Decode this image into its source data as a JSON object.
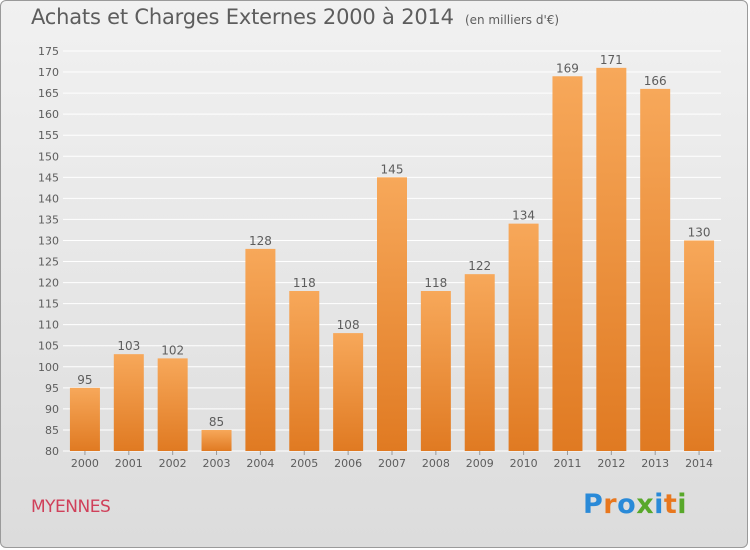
{
  "title": "Achats et Charges Externes 2000 à 2014",
  "unit_note": "(en milliers d'€)",
  "town": "MYENNES",
  "logo": {
    "text": "Proxiti",
    "colors": [
      "#2a8ad8",
      "#e8771e",
      "#2a8ad8",
      "#58a82a",
      "#2a8ad8",
      "#e8771e",
      "#58a82a"
    ]
  },
  "colors": {
    "bar_top": "#f7a85a",
    "bar_bottom": "#e07a22",
    "grid": "#ffffff",
    "text": "#5d5d5d",
    "town": "#d0405a"
  },
  "chart_data": {
    "type": "bar",
    "title": "Achats et Charges Externes 2000 à 2014",
    "subtitle": "(en milliers d'€)",
    "categories": [
      "2000",
      "2001",
      "2002",
      "2003",
      "2004",
      "2005",
      "2006",
      "2007",
      "2008",
      "2009",
      "2010",
      "2011",
      "2012",
      "2013",
      "2014"
    ],
    "values": [
      95,
      103,
      102,
      85,
      128,
      118,
      108,
      145,
      118,
      122,
      134,
      169,
      171,
      166,
      130
    ],
    "ylim": [
      80,
      175
    ],
    "yticks": [
      80,
      85,
      90,
      95,
      100,
      105,
      110,
      115,
      120,
      125,
      130,
      135,
      140,
      145,
      150,
      155,
      160,
      165,
      170,
      175
    ],
    "grid": true,
    "data_labels": true
  }
}
